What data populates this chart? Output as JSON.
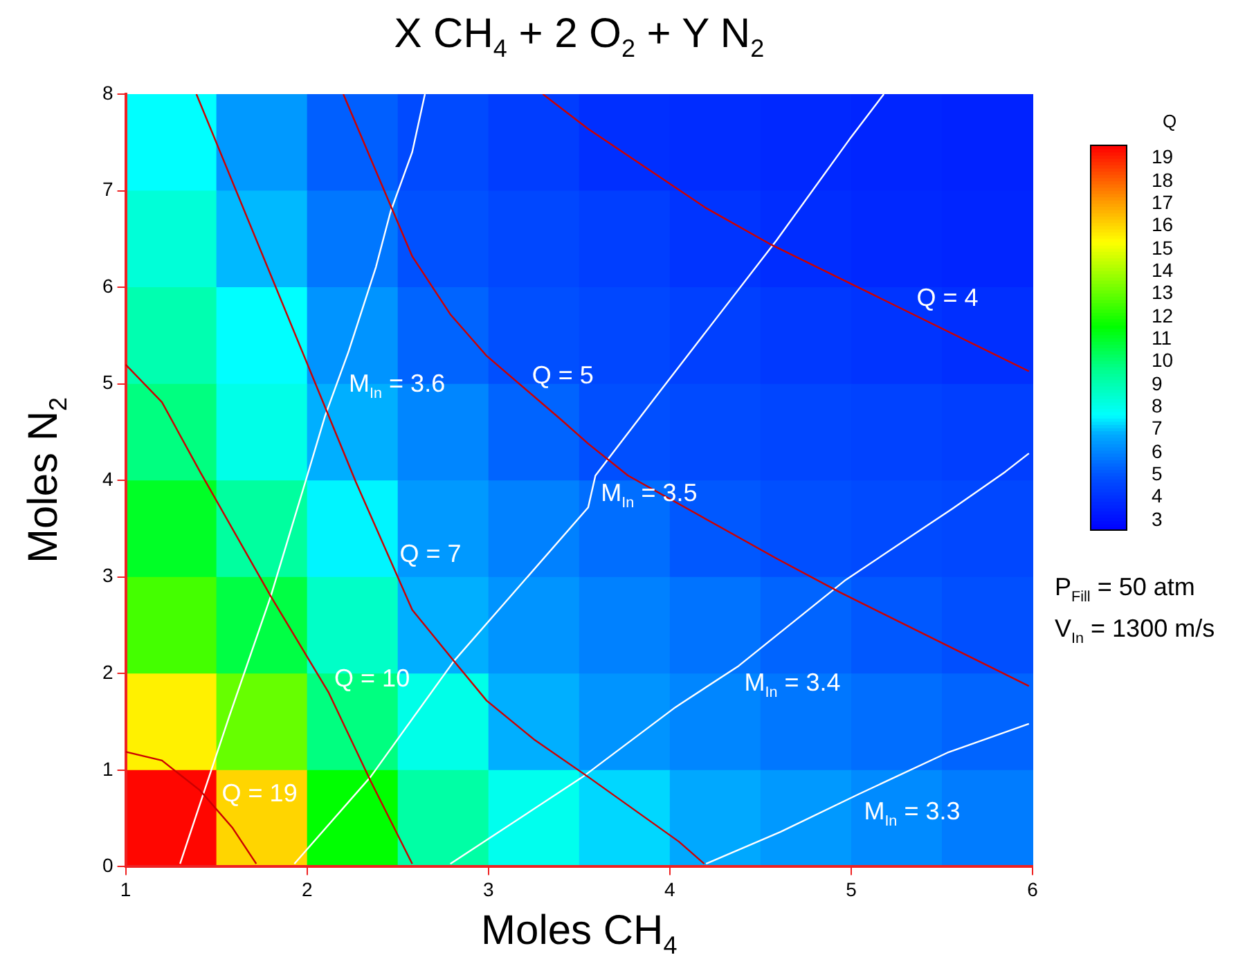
{
  "chart_data": [
    {
      "type": "line",
      "title": "X CH$_{4}$ + 2 O$_{2}$ + Y N$_{2}$",
      "xlabel": "Moles CH$_{4}$",
      "ylabel": "Moles N$_{2}$",
      "xlim": [
        1,
        6
      ],
      "xticks": [
        1,
        2,
        3,
        4,
        5,
        6
      ],
      "ylim": [
        0,
        8
      ],
      "yticks": [
        0,
        1,
        2,
        3,
        4,
        5,
        6,
        7,
        8
      ],
      "legend": false,
      "marker": "none",
      "series": [
        {
          "color": "#cc0000",
          "x": [
            1.0,
            1.2,
            1.41,
            1.59,
            1.72
          ],
          "values": [
            1.19,
            1.1,
            0.79,
            0.4,
            0.03
          ]
        },
        {
          "color": "#cc0000",
          "x": [
            1.0,
            1.2,
            1.41,
            1.8,
            2.12,
            2.35,
            2.58
          ],
          "values": [
            5.2,
            4.81,
            4.09,
            2.8,
            1.8,
            0.89,
            0.03
          ]
        },
        {
          "color": "#cc0000",
          "x": [
            1.39,
            2.27,
            2.58,
            2.81,
            2.99,
            3.25,
            3.55,
            4.05,
            4.19
          ],
          "values": [
            8,
            3.98,
            2.66,
            2.13,
            1.72,
            1.32,
            0.93,
            0.26,
            0.03
          ]
        },
        {
          "color": "#cc0000",
          "x": [
            2.2,
            2.41,
            2.58,
            2.79,
            2.99,
            3.4,
            3.55,
            3.77,
            4.59,
            4.94,
            5.98
          ],
          "values": [
            8,
            7.07,
            6.32,
            5.72,
            5.29,
            4.63,
            4.38,
            4.05,
            3.19,
            2.84,
            1.87
          ]
        },
        {
          "color": "#cc0000",
          "x": [
            3.3,
            3.55,
            4.2,
            4.56,
            5.2,
            5.98
          ],
          "values": [
            8,
            7.64,
            6.82,
            6.44,
            5.85,
            5.13
          ]
        },
        {
          "color": "#ffffff",
          "x": [
            2.65,
            2.58,
            2.46,
            2.38,
            2.23,
            2.1,
            1.99,
            1.8,
            1.57,
            1.41,
            1.3
          ],
          "values": [
            8,
            7.4,
            6.78,
            6.21,
            5.34,
            4.67,
            3.98,
            2.8,
            1.55,
            0.65,
            0.03
          ]
        },
        {
          "color": "#ffffff",
          "x": [
            5.18,
            4.99,
            4.59,
            3.92,
            3.59,
            3.55,
            2.81,
            2.35,
            1.93
          ],
          "values": [
            8,
            7.53,
            6.49,
            4.86,
            4.05,
            3.72,
            2.13,
            0.93,
            0.03
          ]
        },
        {
          "color": "#ffffff",
          "x": [
            5.98,
            5.85,
            5.56,
            4.97,
            4.38,
            4.03,
            3.52,
            2.79
          ],
          "values": [
            4.28,
            4.09,
            3.71,
            2.97,
            2.08,
            1.65,
            0.93,
            0.03
          ]
        },
        {
          "color": "#ffffff",
          "x": [
            5.98,
            5.53,
            5.04,
            4.61,
            4.2
          ],
          "values": [
            1.48,
            1.18,
            0.75,
            0.36,
            0.03
          ]
        }
      ],
      "annotations": [
        {
          "text": "Q = 19",
          "x": 1.5,
          "y": 0.6
        },
        {
          "text": "Q = 10",
          "x": 2.12,
          "y": 1.8
        },
        {
          "text": "Q = 7",
          "x": 2.48,
          "y": 3.08
        },
        {
          "text": "Q = 5",
          "x": 3.21,
          "y": 4.94
        },
        {
          "text": "Q = 4",
          "x": 5.33,
          "y": 5.73
        },
        {
          "text": "M$_{In}$ = 3.6",
          "x": 2.2,
          "y": 5.18
        },
        {
          "text": "M$_{In}$ = 3.5",
          "x": 3.59,
          "y": 4.05
        },
        {
          "text": "M$_{In}$ = 3.4",
          "x": 4.38,
          "y": 2.08
        },
        {
          "text": "M$_{In}$ = 3.3",
          "x": 5.04,
          "y": 0.75
        },
        "P$_{Fill}$ = 50 atm",
        "V$_{In}$ = 1300 m/s"
      ]
    },
    {
      "type": "heatmap",
      "clabel": "Q",
      "tick_labels": false,
      "categories": [
        null,
        null,
        null,
        null,
        null,
        null,
        null,
        null,
        null,
        null
      ],
      "y_categories": [
        null,
        null,
        null,
        null,
        null,
        null,
        null,
        null
      ],
      "cells": [
        [
          7.6,
          6.4,
          5.2,
          4.7,
          4.3,
          3.9,
          3.8,
          3.7,
          3.6,
          3.5
        ],
        [
          8.3,
          6.9,
          5.7,
          4.9,
          4.6,
          4.35,
          4.05,
          3.85,
          3.7,
          3.6
        ],
        [
          9.0,
          7.6,
          6.3,
          5.3,
          4.85,
          4.6,
          4.4,
          4.2,
          4.05,
          3.9
        ],
        [
          9.8,
          8.0,
          6.8,
          6.0,
          5.3,
          4.85,
          4.7,
          4.55,
          4.45,
          4.35
        ],
        [
          11.0,
          9.3,
          7.5,
          6.4,
          5.9,
          5.5,
          5.05,
          4.85,
          4.7,
          4.6
        ],
        [
          12.5,
          10.6,
          8.6,
          6.8,
          6.3,
          5.9,
          5.6,
          5.3,
          5.05,
          4.85
        ],
        [
          15.5,
          13.0,
          9.8,
          8.0,
          6.8,
          6.3,
          6.0,
          5.7,
          5.5,
          5.3
        ],
        [
          19.4,
          16.0,
          11.5,
          9.2,
          7.9,
          7.2,
          6.7,
          6.4,
          6.1,
          5.8
        ]
      ],
      "clim": [
        2.5,
        19.5
      ],
      "cticks": [
        3,
        4,
        5,
        6,
        7,
        8,
        9,
        10,
        11,
        12,
        13,
        14,
        15,
        16,
        17,
        18,
        19
      ]
    }
  ]
}
